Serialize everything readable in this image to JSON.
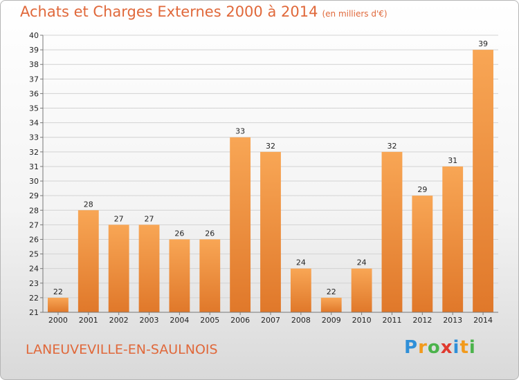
{
  "title": "Achats et Charges Externes 2000 à 2014",
  "subtitle": "(en milliers d'€)",
  "commune": "LANEUVEVILLE-EN-SAULNOIS",
  "brand": {
    "letters": [
      "P",
      "r",
      "o",
      "x",
      "i",
      "t",
      "i"
    ],
    "colors": [
      "#2f8fd8",
      "#f29a1c",
      "#4bb34b",
      "#e03a2f",
      "#2f8fd8",
      "#f29a1c",
      "#4bb34b"
    ]
  },
  "colors": {
    "bar_light": "#f8a655",
    "bar_dark": "#e0782a",
    "accent": "#e0683a"
  },
  "chart_data": {
    "type": "bar",
    "title": "Achats et Charges Externes 2000 à 2014",
    "subtitle": "(en milliers d'€)",
    "categories": [
      "2000",
      "2001",
      "2002",
      "2003",
      "2004",
      "2005",
      "2006",
      "2007",
      "2008",
      "2009",
      "2010",
      "2011",
      "2012",
      "2013",
      "2014"
    ],
    "values": [
      22,
      28,
      27,
      27,
      26,
      26,
      33,
      32,
      24,
      22,
      24,
      32,
      29,
      31,
      39
    ],
    "ylim": [
      21,
      40
    ],
    "yticks": [
      21,
      22,
      23,
      24,
      25,
      26,
      27,
      28,
      29,
      30,
      31,
      32,
      33,
      34,
      35,
      36,
      37,
      38,
      39,
      40
    ],
    "grid": true,
    "data_labels": true
  }
}
